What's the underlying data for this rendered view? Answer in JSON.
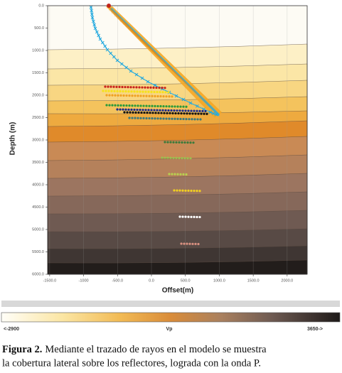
{
  "chart_data": {
    "type": "ray-tracing",
    "xlabel": "Offset(m)",
    "ylabel": "Depth (m)",
    "xlim": [
      -1530,
      2295
    ],
    "ylim": [
      0,
      6000
    ],
    "grid": true,
    "xticks": [
      {
        "value": -1500,
        "label": "-1500.0"
      },
      {
        "value": -1000,
        "label": "-1000"
      },
      {
        "value": -500,
        "label": "-500.0"
      },
      {
        "value": 0,
        "label": "0.0"
      },
      {
        "value": 500,
        "label": "500.0"
      },
      {
        "value": 1000,
        "label": "1000.0"
      },
      {
        "value": 1500,
        "label": "1500.0"
      },
      {
        "value": 2000,
        "label": "2000.0"
      }
    ],
    "yticks": [
      {
        "value": 0,
        "label": "0.0"
      },
      {
        "value": 500,
        "label": "500.0"
      },
      {
        "value": 1000,
        "label": "1000.0"
      },
      {
        "value": 1500,
        "label": "1500.0"
      },
      {
        "value": 2000,
        "label": "2000.0"
      },
      {
        "value": 2500,
        "label": "2500.0"
      },
      {
        "value": 3000,
        "label": "3000.0"
      },
      {
        "value": 3500,
        "label": "3500.0"
      },
      {
        "value": 4000,
        "label": "4000.0"
      },
      {
        "value": 4500,
        "label": "4500.0"
      },
      {
        "value": 5000,
        "label": "5000.0"
      },
      {
        "value": 5500,
        "label": "5500.0"
      },
      {
        "value": 6000,
        "label": "6000.0"
      }
    ],
    "colorbar": {
      "label": "Vp",
      "min_label": "<-2900",
      "max_label": "3650->"
    }
  },
  "caption": {
    "label": "Figura 2.",
    "lines": [
      "Mediante el trazado de rayos en el modelo se muestra",
      "la cobertura lateral sobre los reflectores, lograda con la onda P."
    ]
  }
}
